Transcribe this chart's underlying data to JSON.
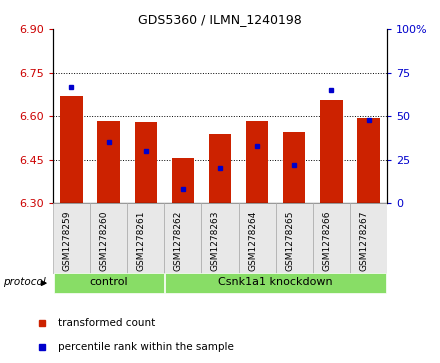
{
  "title": "GDS5360 / ILMN_1240198",
  "samples": [
    "GSM1278259",
    "GSM1278260",
    "GSM1278261",
    "GSM1278262",
    "GSM1278263",
    "GSM1278264",
    "GSM1278265",
    "GSM1278266",
    "GSM1278267"
  ],
  "bar_bottom": 6.3,
  "bar_tops": [
    6.67,
    6.585,
    6.58,
    6.455,
    6.54,
    6.585,
    6.545,
    6.655,
    6.595
  ],
  "percentile_ranks": [
    67,
    35,
    30,
    8,
    20,
    33,
    22,
    65,
    48
  ],
  "ylim_left": [
    6.3,
    6.9
  ],
  "ylim_right": [
    0,
    100
  ],
  "yticks_left": [
    6.3,
    6.45,
    6.6,
    6.75,
    6.9
  ],
  "yticks_right": [
    0,
    25,
    50,
    75,
    100
  ],
  "ytick_labels_right": [
    "0",
    "25",
    "50",
    "75",
    "100%"
  ],
  "bar_color": "#cc2200",
  "percentile_color": "#0000cc",
  "control_group": [
    0,
    1,
    2
  ],
  "knockdown_group": [
    3,
    4,
    5,
    6,
    7,
    8
  ],
  "control_label": "control",
  "knockdown_label": "Csnk1a1 knockdown",
  "group_color": "#88dd66",
  "protocol_label": "protocol",
  "legend1": "transformed count",
  "legend2": "percentile rank within the sample",
  "left_tick_color": "#cc0000",
  "right_tick_color": "#0000cc"
}
